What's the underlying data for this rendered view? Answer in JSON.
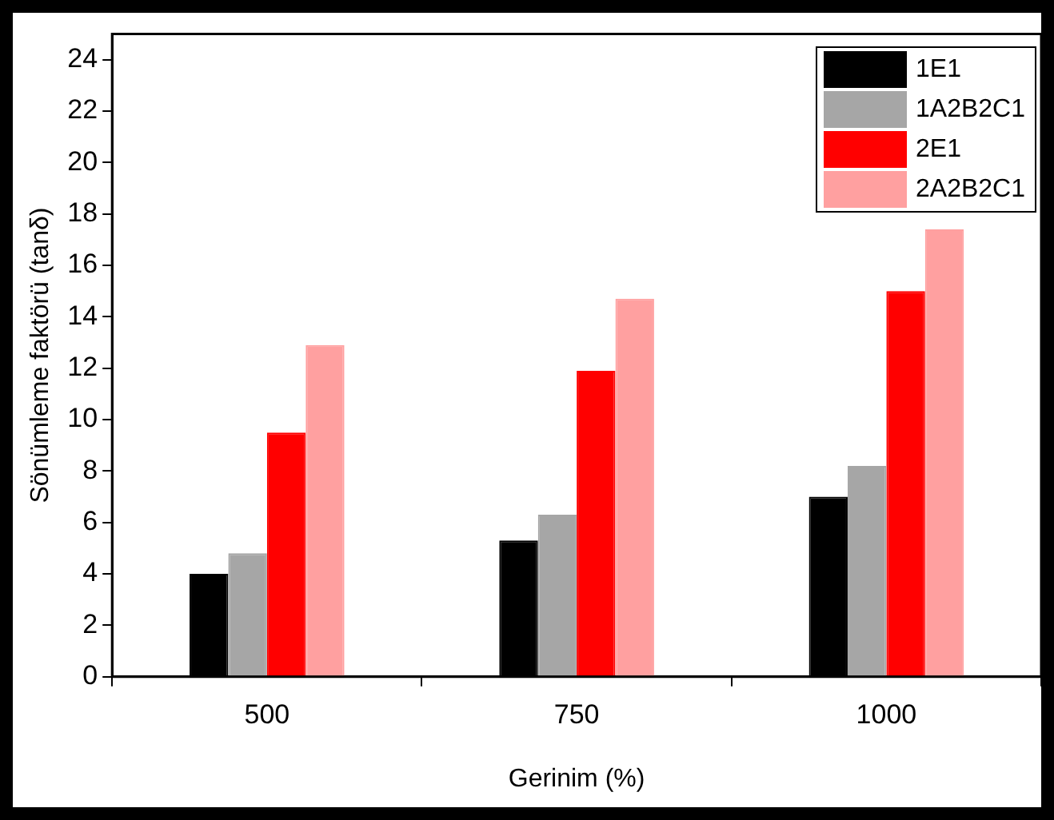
{
  "chart_data": {
    "type": "bar",
    "xlabel": "Gerinim (%)",
    "ylabel": "Sönümleme faktörü (tanδ)",
    "categories": [
      "500",
      "750",
      "1000"
    ],
    "series": [
      {
        "name": "1E1",
        "color": "#000000",
        "values": [
          4.0,
          5.3,
          7.0
        ]
      },
      {
        "name": "1A2B2C1",
        "color": "#a6a6a6",
        "values": [
          4.8,
          6.3,
          8.2
        ]
      },
      {
        "name": "2E1",
        "color": "#ff0000",
        "values": [
          9.5,
          11.9,
          15.0
        ]
      },
      {
        "name": "2A2B2C1",
        "color": "#ffa0a0",
        "values": [
          12.9,
          14.7,
          17.4
        ]
      }
    ],
    "ylim": [
      0,
      25
    ],
    "yticks": [
      0,
      2,
      4,
      6,
      8,
      10,
      12,
      14,
      16,
      18,
      20,
      22,
      24
    ],
    "legend": "top right"
  }
}
